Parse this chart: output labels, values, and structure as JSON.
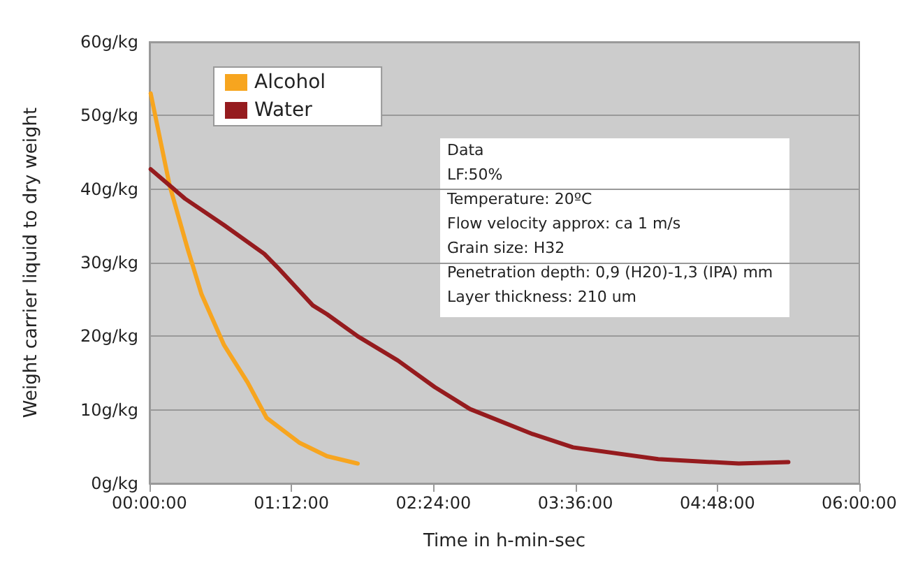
{
  "chart_data": {
    "type": "line",
    "xlabel": "Time in h-min-sec",
    "ylabel": "Weight carrier liquid to dry weight",
    "xlim": [
      0,
      6
    ],
    "xticks": [
      {
        "value": 0,
        "label": "00:00:00"
      },
      {
        "value": 1.2,
        "label": "01:12:00"
      },
      {
        "value": 2.4,
        "label": "02:24:00"
      },
      {
        "value": 3.6,
        "label": "03:36:00"
      },
      {
        "value": 4.8,
        "label": "04:48:00"
      },
      {
        "value": 6,
        "label": "06:00:00"
      }
    ],
    "ylim": [
      0,
      60
    ],
    "yticks": [
      {
        "value": 0,
        "label": "0g/kg"
      },
      {
        "value": 10,
        "label": "10g/kg"
      },
      {
        "value": 20,
        "label": "20g/kg"
      },
      {
        "value": 30,
        "label": "30g/kg"
      },
      {
        "value": 40,
        "label": "40g/kg"
      },
      {
        "value": 50,
        "label": "50g/kg"
      },
      {
        "value": 60,
        "label": "60g/kg"
      }
    ],
    "series": [
      {
        "name": "Alcohol",
        "color": "#f7a51f",
        "x": [
          0.01,
          0.17,
          0.32,
          0.44,
          0.63,
          0.83,
          0.99,
          1.27,
          1.5,
          1.76
        ],
        "values": [
          53,
          40.5,
          32,
          25.7,
          18.8,
          13.7,
          8.9,
          5.5,
          3.7,
          2.7
        ]
      },
      {
        "name": "Water",
        "color": "#951b1e",
        "x": [
          0.01,
          0.3,
          0.63,
          0.97,
          1.08,
          1.38,
          1.5,
          1.76,
          2.1,
          2.41,
          2.71,
          3.24,
          3.58,
          4.3,
          4.98,
          5.4
        ],
        "values": [
          42.7,
          38.7,
          35.1,
          31.2,
          29.4,
          24.2,
          23,
          20,
          16.7,
          13.1,
          10.1,
          6.7,
          4.9,
          3.3,
          2.7,
          2.9
        ]
      }
    ],
    "annotations": [
      "Data",
      "LF:50%",
      "Temperature: 20ºC",
      "Flow velocity approx: ca 1 m/s",
      "Grain size: H32",
      "Penetration depth: 0,9 (H20)-1,3 (IPA) mm",
      "Layer thickness: 210 um"
    ],
    "grid": "y",
    "legend": "top left",
    "marker": "none",
    "line_style": "solid"
  }
}
